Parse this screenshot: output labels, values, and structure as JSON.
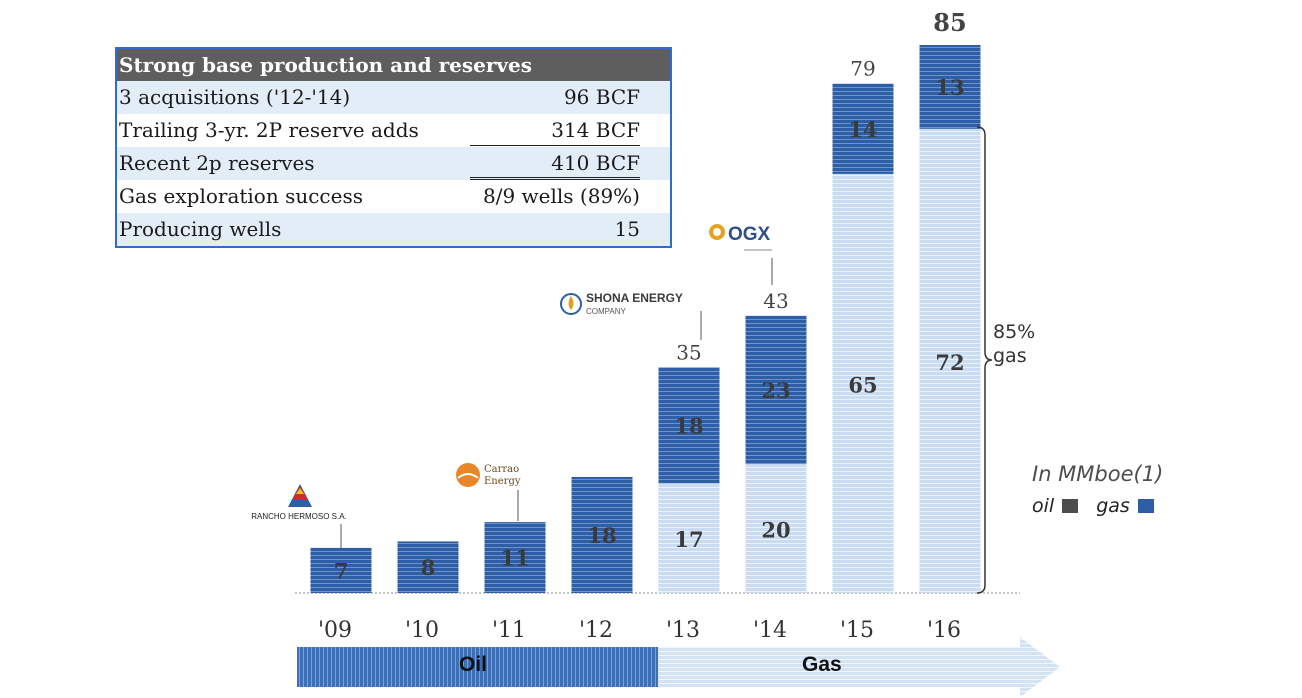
{
  "table": {
    "header": "Strong base production and reserves",
    "rows": [
      {
        "label": "3 acquisitions ('12-'14)",
        "value": "96 BCF"
      },
      {
        "label": "Trailing 3-yr. 2P reserve adds",
        "value": "314 BCF"
      },
      {
        "label": "Recent 2p reserves",
        "value": "410 BCF"
      },
      {
        "label": "Gas exploration success",
        "value": "8/9 wells (89%)"
      },
      {
        "label": "Producing wells",
        "value": "15"
      }
    ]
  },
  "chart_data": {
    "type": "bar",
    "stacked": true,
    "categories": [
      "'09",
      "'10",
      "'11",
      "'12",
      "'13",
      "'14",
      "'15",
      "'16"
    ],
    "series": [
      {
        "name": "oil",
        "values": [
          7,
          8,
          11,
          18,
          18,
          23,
          14,
          13
        ]
      },
      {
        "name": "gas",
        "values": [
          0,
          0,
          0,
          0,
          17,
          20,
          65,
          72
        ]
      }
    ],
    "totals": [
      null,
      null,
      null,
      null,
      35,
      43,
      79,
      85
    ],
    "ylim": [
      0,
      85
    ],
    "legend_position": "right",
    "unit_note": "In MMboe(1)",
    "legend_labels": [
      "oil",
      "gas"
    ],
    "annotation_pct": "85%",
    "annotation_word": "gas",
    "phases": [
      "Oil",
      "Gas"
    ],
    "acquisitions": [
      {
        "category": "'09",
        "name": "RANCHO HERMOSO S.A."
      },
      {
        "category": "'11",
        "name_line1": "Carrao",
        "name_line2": "Energy"
      },
      {
        "category": "'13",
        "name_line1": "SHONA ENERGY",
        "name_line2": "COMPANY"
      },
      {
        "category": "'14",
        "name": "OGX"
      }
    ],
    "colors": {
      "oil": "#2e5fa6",
      "gas": "#c6d9ef",
      "legend_oil": "#4d4d4d",
      "legend_gas": "#2e5fa6"
    }
  }
}
